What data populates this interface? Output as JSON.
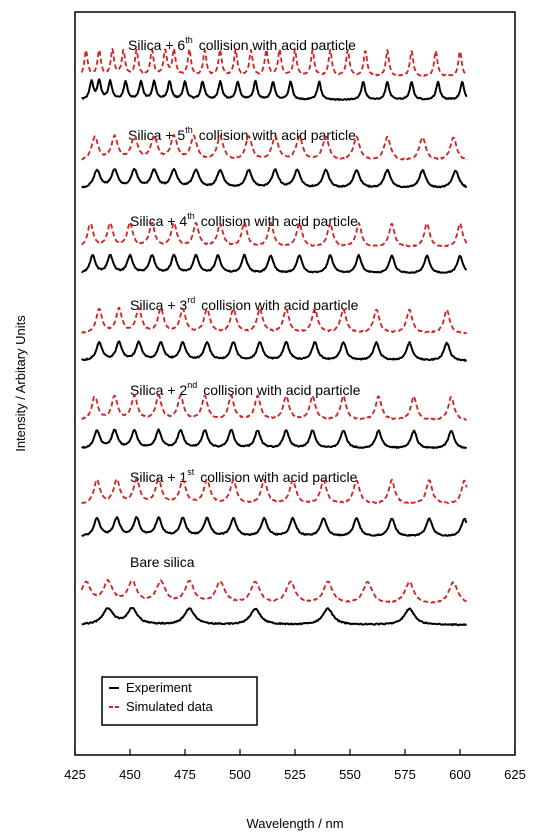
{
  "chart_data": {
    "type": "line",
    "xlabel": "Wavelength / nm",
    "ylabel": "Intensity / Arbitary Units",
    "xlim": [
      425,
      625
    ],
    "xticks": [
      425,
      450,
      475,
      500,
      525,
      550,
      575,
      600,
      625
    ],
    "x_range": [
      428,
      603
    ],
    "grid": false,
    "legend": {
      "position": "bottom-left",
      "entries": [
        {
          "label": "Experiment",
          "color": "#000000",
          "dash": "solid"
        },
        {
          "label": "Simulated data",
          "color": "#d42020",
          "dash": "dashed"
        }
      ]
    },
    "series_style": {
      "experiment": {
        "color": "#000000",
        "dash": "solid"
      },
      "simulated": {
        "color": "#d42020",
        "dash": "dashed"
      }
    },
    "panels": [
      {
        "label": {
          "pre": "Silica + 6",
          "sup": "th",
          "post": "collision with acid particle"
        },
        "experiment": {
          "peaks": [
            432.5,
            436,
            441,
            448,
            455,
            461,
            468,
            475,
            483,
            491,
            499,
            507,
            515,
            523,
            536,
            556,
            567,
            578,
            590,
            601
          ],
          "width": 1.0,
          "amp": 18
        },
        "simulated": {
          "peaks": [
            430,
            436,
            442,
            447,
            453,
            460,
            466,
            470,
            477,
            484,
            491,
            498,
            505,
            512,
            518,
            525,
            533,
            541,
            549,
            557,
            567,
            578,
            589,
            600
          ],
          "width": 0.9,
          "amp": 26
        }
      },
      {
        "label": {
          "pre": "Silica + 5",
          "sup": "th",
          "post": "collision with acid particle"
        },
        "experiment": {
          "peaks": [
            435,
            443,
            452,
            461,
            470,
            480,
            491,
            504,
            516,
            526,
            539,
            553,
            567,
            583,
            598
          ],
          "width": 1.8,
          "amp": 18
        },
        "simulated": {
          "peaks": [
            434,
            443,
            452,
            461,
            470,
            479,
            491,
            504,
            516,
            527,
            539,
            553,
            567,
            583,
            597
          ],
          "width": 1.8,
          "amp": 24
        }
      },
      {
        "label": {
          "pre": "Silica + 4",
          "sup": "th",
          "post": "collision with acid particle"
        },
        "experiment": {
          "peaks": [
            433,
            441,
            450,
            460,
            470,
            480,
            490,
            502,
            514,
            527,
            541,
            554,
            569,
            585,
            600
          ],
          "width": 1.5,
          "amp": 18
        },
        "simulated": {
          "peaks": [
            432,
            441,
            450,
            460,
            470,
            480,
            491,
            502,
            514,
            527,
            541,
            554,
            569,
            585,
            600
          ],
          "width": 1.5,
          "amp": 24
        }
      },
      {
        "label": {
          "pre": "Silica + 3",
          "sup": "rd",
          "post": "collision with acid particle"
        },
        "experiment": {
          "peaks": [
            436,
            445,
            454,
            464,
            474,
            485,
            497,
            509,
            521,
            534,
            547,
            562,
            577,
            594
          ],
          "width": 1.6,
          "amp": 18
        },
        "simulated": {
          "peaks": [
            436,
            445,
            454,
            464,
            474,
            485,
            497,
            509,
            521,
            534,
            547,
            562,
            577,
            594
          ],
          "width": 1.6,
          "amp": 24
        }
      },
      {
        "label": {
          "pre": "Silica + 2",
          "sup": "nd",
          "post": "collision with acid particle"
        },
        "experiment": {
          "peaks": [
            435,
            443,
            452,
            463,
            473,
            484,
            496,
            508,
            521,
            533,
            547,
            563,
            579,
            596
          ],
          "width": 1.6,
          "amp": 18
        },
        "simulated": {
          "peaks": [
            434,
            443,
            452,
            463,
            473,
            484,
            496,
            508,
            521,
            533,
            547,
            563,
            579,
            596
          ],
          "width": 1.6,
          "amp": 24
        }
      },
      {
        "label": {
          "pre": "Silica + 1",
          "sup": "st",
          "post": "collision with acid particle"
        },
        "experiment": {
          "peaks": [
            435,
            444,
            453,
            463,
            474,
            485,
            497,
            511,
            524,
            538,
            553,
            569,
            586,
            602
          ],
          "width": 1.7,
          "amp": 18
        },
        "simulated": {
          "peaks": [
            435,
            444,
            453,
            463,
            474,
            485,
            497,
            511,
            524,
            538,
            553,
            569,
            586,
            602
          ],
          "width": 1.7,
          "amp": 24
        }
      },
      {
        "label": {
          "pre": "Bare silica",
          "sup": "",
          "post": ""
        },
        "experiment": {
          "peaks": [
            440,
            451,
            477,
            507,
            540,
            577
          ],
          "width": 2.8,
          "amp": 16
        },
        "simulated": {
          "peaks": [
            430,
            440,
            451,
            464,
            477,
            491,
            507,
            523,
            540,
            558,
            577,
            597
          ],
          "width": 2.5,
          "amp": 22
        }
      }
    ]
  }
}
